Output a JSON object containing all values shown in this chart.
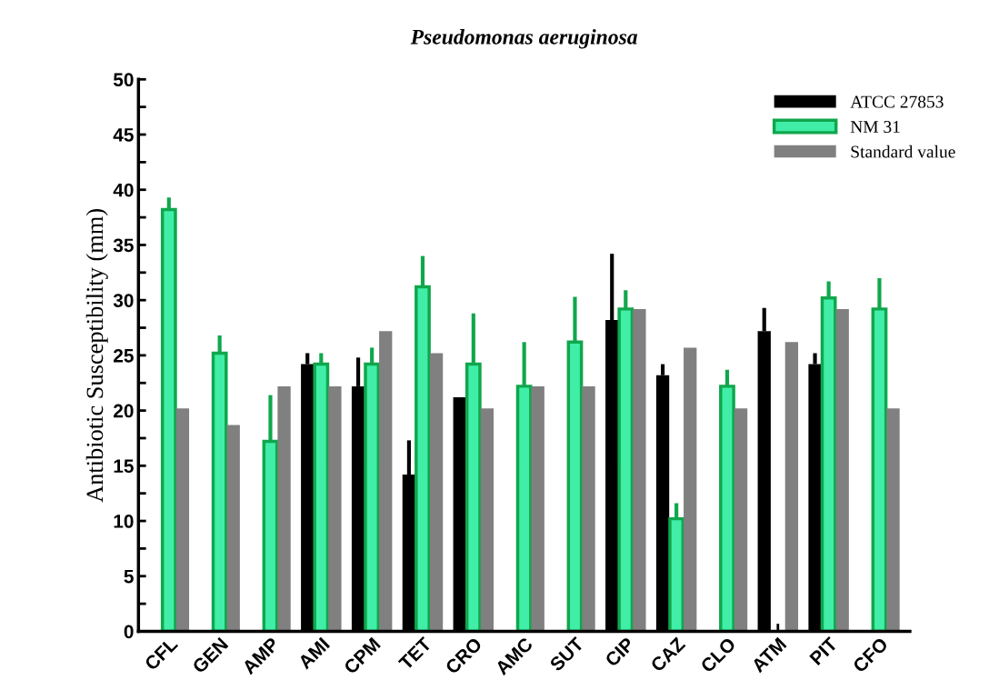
{
  "chart_data": {
    "type": "bar",
    "title": "Pseudomonas aeruginosa",
    "ylabel": "Antibiotic Susceptibility (mm)",
    "categories": [
      "CFL",
      "GEN",
      "AMP",
      "AMI",
      "CPM",
      "TET",
      "CRO",
      "AMC",
      "SUT",
      "CIP",
      "CAZ",
      "CLO",
      "ATM",
      "PIT",
      "CFO"
    ],
    "series": [
      {
        "name": "ATCC 27853",
        "color": "#000000",
        "values": [
          null,
          null,
          null,
          24.2,
          22.2,
          14.2,
          21.2,
          null,
          null,
          28.2,
          23.2,
          null,
          27.2,
          24.2,
          null
        ],
        "errors": [
          null,
          null,
          null,
          [
            24.2,
            25.2
          ],
          [
            22.2,
            24.8
          ],
          [
            14.2,
            17.3
          ],
          null,
          null,
          null,
          [
            28.2,
            34.2
          ],
          [
            23.2,
            24.2
          ],
          null,
          [
            27.2,
            29.3
          ],
          [
            24.2,
            25.2
          ],
          null
        ]
      },
      {
        "name": "NM 31",
        "color": "#40eea8",
        "values": [
          38.2,
          25.2,
          17.2,
          24.2,
          24.2,
          31.2,
          24.2,
          22.2,
          26.2,
          29.2,
          10.2,
          22.2,
          null,
          30.2,
          29.2
        ],
        "errors": [
          [
            38.2,
            39.3
          ],
          [
            25.2,
            26.8
          ],
          [
            17.2,
            21.4
          ],
          [
            24.2,
            25.2
          ],
          [
            24.2,
            25.7
          ],
          [
            31.2,
            34.0
          ],
          [
            24.2,
            28.8
          ],
          [
            22.2,
            26.2
          ],
          [
            26.2,
            30.3
          ],
          [
            29.2,
            30.9
          ],
          [
            10.2,
            11.6
          ],
          [
            22.2,
            23.7
          ],
          null,
          [
            30.2,
            31.7
          ],
          [
            29.2,
            32.0
          ]
        ]
      },
      {
        "name": "Standard value",
        "color": "#808080",
        "values": [
          20.2,
          18.7,
          22.2,
          22.2,
          27.2,
          25.2,
          20.2,
          22.2,
          22.2,
          29.2,
          25.7,
          20.2,
          26.2,
          29.2,
          20.2
        ]
      }
    ],
    "ylim": [
      0,
      50
    ],
    "yticks": [
      0,
      {
        "value": 2.5,
        "label": null
      },
      5,
      {
        "value": 7.5,
        "label": null
      },
      10,
      {
        "value": 12.5,
        "label": null
      },
      15,
      {
        "value": 17.5,
        "label": null
      },
      20,
      {
        "value": 22.5,
        "label": null
      },
      25,
      {
        "value": 27.5,
        "label": null
      },
      30,
      {
        "value": 32.5,
        "label": null
      },
      35,
      {
        "value": 37.5,
        "label": null
      },
      40,
      {
        "value": 42.5,
        "label": null
      },
      45,
      {
        "value": 47.5,
        "label": null
      },
      50
    ],
    "grid": false,
    "legend": "top right"
  }
}
